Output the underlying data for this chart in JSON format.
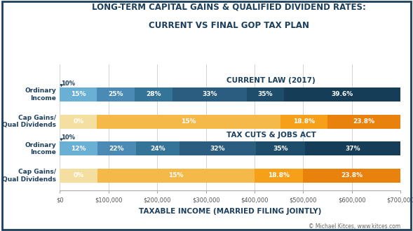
{
  "title_line1": "LONG-TERM CAPITAL GAINS & QUALIFIED DIVIDEND RATES:",
  "title_line2": "CURRENT VS FINAL GOP TAX PLAN",
  "xlabel": "TAXABLE INCOME (MARRIED FILING JOINTLY)",
  "copyright": "© Michael Kitces, www.kitces.com",
  "background_color": "#ffffff",
  "border_color": "#1c3f5e",
  "xlim": [
    0,
    700000
  ],
  "xticks": [
    0,
    100000,
    200000,
    300000,
    400000,
    500000,
    600000,
    700000
  ],
  "xtick_labels": [
    "$0",
    "$100,000",
    "$200,000",
    "$300,000",
    "$400,000",
    "$500,000",
    "$600,000",
    "$700,000"
  ],
  "current_ordinary_segments": [
    75900,
    77200,
    77900,
    152900,
    76000,
    240100
  ],
  "current_ordinary_labels": [
    "15%",
    "25%",
    "28%",
    "33%",
    "35%",
    "39.6%"
  ],
  "current_ordinary_colors": [
    "#6aafd4",
    "#4a8ab5",
    "#357499",
    "#2a5d7f",
    "#1e4d6b",
    "#163d58"
  ],
  "current_capgains_segments": [
    75900,
    377200,
    96900,
    150000
  ],
  "current_capgains_labels": [
    "0%",
    "15%",
    "18.8%",
    "23.8%"
  ],
  "current_capgains_colors": [
    "#f5dfa0",
    "#f5b94a",
    "#f5a018",
    "#e8820c"
  ],
  "tcja_ordinary_segments": [
    77400,
    78600,
    89800,
    157200,
    100000,
    197000
  ],
  "tcja_ordinary_labels": [
    "12%",
    "22%",
    "24%",
    "32%",
    "35%",
    "37%"
  ],
  "tcja_ordinary_colors": [
    "#6aafd4",
    "#4a8ab5",
    "#357499",
    "#2a5d7f",
    "#1e4d6b",
    "#163d58"
  ],
  "tcja_capgains_segments": [
    77400,
    322600,
    100000,
    200000
  ],
  "tcja_capgains_labels": [
    "0%",
    "15%",
    "18.8%",
    "23.8%"
  ],
  "tcja_capgains_colors": [
    "#f5dfa0",
    "#f5b94a",
    "#f5a018",
    "#e8820c"
  ],
  "title_color": "#1c3f5e",
  "section_label_color": "#1c3f5e",
  "row_label_color": "#1c3f5e",
  "bar_text_color": "#ffffff",
  "axis_label_color": "#1c3f5e",
  "tick_label_color": "#555555",
  "grid_color": "#cccccc"
}
